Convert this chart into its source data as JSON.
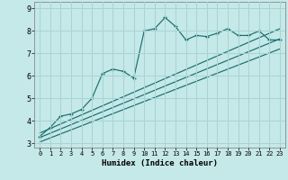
{
  "xlabel": "Humidex (Indice chaleur)",
  "bg_color": "#c5e8e8",
  "grid_color": "#a8d4d4",
  "line_color": "#1a6e6e",
  "xlim": [
    -0.5,
    23.5
  ],
  "ylim": [
    2.8,
    9.3
  ],
  "xticks": [
    0,
    1,
    2,
    3,
    4,
    5,
    6,
    7,
    8,
    9,
    10,
    11,
    12,
    13,
    14,
    15,
    16,
    17,
    18,
    19,
    20,
    21,
    22,
    23
  ],
  "yticks": [
    3,
    4,
    5,
    6,
    7,
    8,
    9
  ],
  "curve_x": [
    0,
    1,
    2,
    3,
    4,
    5,
    6,
    7,
    8,
    9,
    10,
    11,
    12,
    13,
    14,
    15,
    16,
    17,
    18,
    19,
    20,
    21,
    22,
    23
  ],
  "curve_y": [
    3.3,
    3.7,
    4.2,
    4.3,
    4.5,
    5.0,
    6.1,
    6.3,
    6.2,
    5.9,
    8.0,
    8.1,
    8.6,
    8.2,
    7.6,
    7.8,
    7.75,
    7.9,
    8.1,
    7.8,
    7.8,
    8.0,
    7.6,
    7.6
  ],
  "reg_lines": [
    [
      [
        0,
        23
      ],
      [
        3.05,
        7.2
      ]
    ],
    [
      [
        0,
        23
      ],
      [
        3.25,
        7.65
      ]
    ],
    [
      [
        0,
        23
      ],
      [
        3.45,
        8.1
      ]
    ]
  ]
}
